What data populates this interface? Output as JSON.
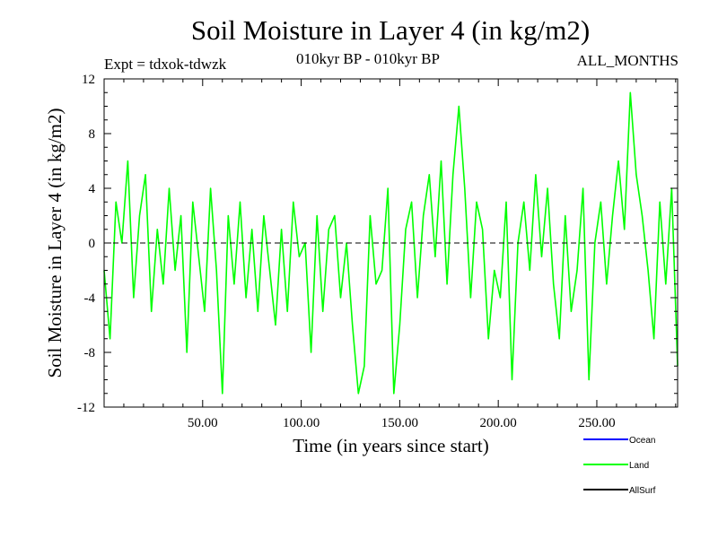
{
  "chart_data": {
    "type": "line",
    "title": "Soil Moisture in Layer 4 (in kg/m2)",
    "subtitle_left": "Expt = tdxok-tdwzk",
    "subtitle_center": "010kyr BP - 010kyr BP",
    "subtitle_right": "ALL_MONTHS",
    "xlabel": "Time (in years since start)",
    "ylabel": "Soil Moisture in Layer 4 (in kg/m2)",
    "xlim": [
      0,
      291
    ],
    "ylim": [
      -12,
      12
    ],
    "x_ticks": [
      50,
      100,
      150,
      200,
      250
    ],
    "x_tick_labels": [
      "50.00",
      "100.00",
      "150.00",
      "200.00",
      "250.00"
    ],
    "y_ticks": [
      -12,
      -8,
      -4,
      0,
      4,
      8,
      12
    ],
    "y_tick_labels": [
      "-12",
      "-8",
      "-4",
      "0",
      "4",
      "8",
      "12"
    ],
    "zero_line": "dashed",
    "grid": false,
    "legend_position": "bottom-right",
    "series": [
      {
        "name": "Land",
        "color": "#00ff00",
        "x": [
          0,
          3,
          6,
          9,
          12,
          15,
          18,
          21,
          24,
          27,
          30,
          33,
          36,
          39,
          42,
          45,
          48,
          51,
          54,
          57,
          60,
          63,
          66,
          69,
          72,
          75,
          78,
          81,
          84,
          87,
          90,
          93,
          96,
          99,
          102,
          105,
          108,
          111,
          114,
          117,
          120,
          123,
          126,
          129,
          132,
          135,
          138,
          141,
          144,
          147,
          150,
          153,
          156,
          159,
          162,
          165,
          168,
          171,
          174,
          177,
          180,
          183,
          186,
          189,
          192,
          195,
          198,
          201,
          204,
          207,
          210,
          213,
          216,
          219,
          222,
          225,
          228,
          231,
          234,
          237,
          240,
          243,
          246,
          249,
          252,
          255,
          258,
          261,
          264,
          267,
          270,
          273,
          276,
          279,
          282,
          285,
          288,
          291
        ],
        "values": [
          -2,
          -7,
          3,
          0,
          6,
          -4,
          2,
          5,
          -5,
          1,
          -3,
          4,
          -2,
          2,
          -8,
          3,
          -1,
          -5,
          4,
          -2,
          -11,
          2,
          -3,
          3,
          -4,
          1,
          -5,
          2,
          -2,
          -6,
          1,
          -5,
          3,
          -1,
          0,
          -8,
          2,
          -5,
          1,
          2,
          -4,
          0,
          -6,
          -11,
          -9,
          2,
          -3,
          -2,
          4,
          -11,
          -6,
          1,
          3,
          -4,
          2,
          5,
          -1,
          6,
          -3,
          5,
          10,
          4,
          -4,
          3,
          1,
          -7,
          -2,
          -4,
          3,
          -10,
          0,
          3,
          -2,
          5,
          -1,
          4,
          -3,
          -7,
          2,
          -5,
          -2,
          4,
          -10,
          0,
          3,
          -3,
          2,
          6,
          1,
          11,
          5,
          2,
          -2,
          -7,
          3,
          -3,
          4,
          -9
        ]
      },
      {
        "name": "Ocean",
        "color": "#0000ff"
      },
      {
        "name": "AllSurf",
        "color": "#000000"
      }
    ]
  }
}
